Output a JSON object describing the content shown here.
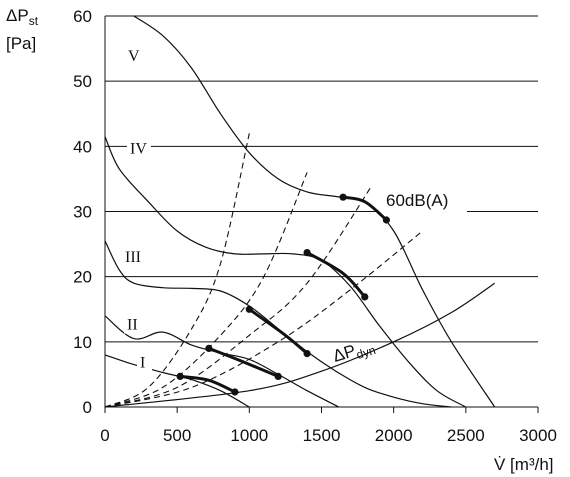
{
  "chart_data": {
    "type": "line",
    "title": "",
    "xlabel": "V̇ [m³/h]",
    "ylabel_main": "ΔP",
    "ylabel_sub": "st",
    "ylabel_unit": "[Pa]",
    "xlim": [
      0,
      3000
    ],
    "ylim": [
      0,
      60
    ],
    "x_ticks": [
      0,
      500,
      1000,
      1500,
      2000,
      2500,
      3000
    ],
    "y_ticks": [
      0,
      10,
      20,
      30,
      40,
      50,
      60
    ],
    "x_tick_labels": [
      "0",
      "500",
      "1000",
      "1500",
      "2000",
      "2500",
      "3000"
    ],
    "y_tick_labels": [
      "0",
      "10",
      "20",
      "30",
      "40",
      "50",
      "60"
    ],
    "grid": "horizontal",
    "fan_curves": [
      {
        "label": "I",
        "x": [
          0,
          200,
          400,
          600,
          800,
          1000
        ],
        "y": [
          8,
          6.5,
          5.3,
          4.2,
          2.5,
          0
        ]
      },
      {
        "label": "II",
        "x": [
          0,
          200,
          400,
          600,
          800,
          1000,
          1200,
          1400,
          1620
        ],
        "y": [
          14,
          10.5,
          11.5,
          9.5,
          8.3,
          7.3,
          5,
          2.5,
          0
        ]
      },
      {
        "label": "III",
        "x": [
          0,
          100,
          200,
          400,
          600,
          800,
          1000,
          1200,
          1400,
          1600,
          1800,
          2000,
          2200,
          2400
        ],
        "y": [
          25.5,
          21,
          19,
          18.3,
          18.2,
          17.8,
          15.5,
          12,
          8.5,
          5.5,
          3,
          1.5,
          0.5,
          0
        ]
      },
      {
        "label": "IV",
        "x": [
          0,
          100,
          300,
          500,
          700,
          900,
          1100,
          1300,
          1500,
          1700,
          1900,
          2100,
          2300,
          2500
        ],
        "y": [
          41.5,
          36.5,
          31.5,
          27,
          24.5,
          23.5,
          23.5,
          23.5,
          22.5,
          18.5,
          12.5,
          7,
          2.5,
          0
        ]
      },
      {
        "label": "V",
        "x": [
          200,
          400,
          600,
          800,
          1000,
          1200,
          1400,
          1600,
          1800,
          2000,
          2200,
          2400,
          2700
        ],
        "y": [
          60,
          57,
          52,
          45,
          39,
          35,
          33,
          32.3,
          31.5,
          27,
          18,
          10,
          0
        ]
      }
    ],
    "system_curves": [
      {
        "x": [
          0,
          300,
          600,
          800,
          1000
        ],
        "y": [
          0,
          3,
          12,
          22,
          42
        ]
      },
      {
        "x": [
          0,
          400,
          800,
          1100,
          1400
        ],
        "y": [
          0,
          3,
          11,
          20,
          36
        ]
      },
      {
        "x": [
          0,
          500,
          1000,
          1400,
          1850
        ],
        "y": [
          0,
          3,
          11,
          19,
          34
        ]
      },
      {
        "x": [
          0,
          600,
          1200,
          1700,
          2200
        ],
        "y": [
          0,
          3,
          10,
          18,
          27
        ]
      }
    ],
    "dynamic_pressure_curve": {
      "label_main": "ΔP",
      "label_sub": "dyn",
      "x": [
        0,
        1000,
        1500,
        2000,
        2400,
        2700
      ],
      "y": [
        0,
        2.5,
        5.5,
        10,
        14.5,
        19
      ]
    },
    "noise_segments": [
      {
        "x": [
          520,
          720,
          900
        ],
        "y": [
          4.7,
          4.1,
          2.3
        ]
      },
      {
        "x": [
          720,
          950,
          1200
        ],
        "y": [
          9.0,
          7.0,
          4.7
        ]
      },
      {
        "x": [
          1000,
          1250,
          1400
        ],
        "y": [
          15.0,
          11.0,
          8.2
        ]
      },
      {
        "x": [
          1400,
          1650,
          1800
        ],
        "y": [
          23.7,
          20.5,
          16.9
        ]
      },
      {
        "x": [
          1650,
          1800,
          1950
        ],
        "y": [
          32.2,
          31.5,
          28.7
        ]
      }
    ],
    "noise_label": "60dB(A)"
  }
}
